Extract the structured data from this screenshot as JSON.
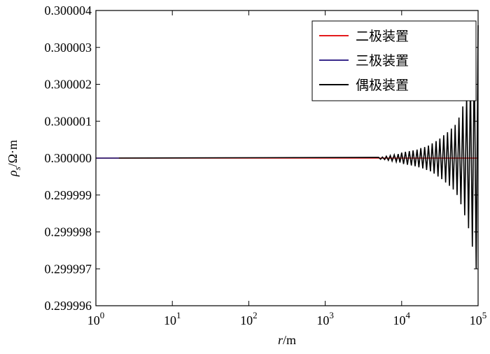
{
  "chart_data": {
    "type": "line",
    "xlabel": {
      "italic": "r",
      "rest": "/m"
    },
    "ylabel": {
      "main": "ρ",
      "sub": "s",
      "rest": "/Ω·m"
    },
    "xscale": "log",
    "xlim": [
      1,
      100000
    ],
    "xticks": [
      {
        "value": 1,
        "label": "10",
        "exponent": "0"
      },
      {
        "value": 10,
        "label": "10",
        "exponent": "1"
      },
      {
        "value": 100,
        "label": "10",
        "exponent": "2"
      },
      {
        "value": 1000,
        "label": "10",
        "exponent": "3"
      },
      {
        "value": 10000,
        "label": "10",
        "exponent": "4"
      },
      {
        "value": 100000,
        "label": "10",
        "exponent": "5"
      }
    ],
    "ylim": [
      0.299996,
      0.300004
    ],
    "yticks": [
      0.299996,
      0.299997,
      0.299998,
      0.299999,
      {
        "value": 0.3,
        "label": "0.300000"
      },
      0.300001,
      0.300002,
      0.300003,
      0.300004
    ],
    "legend": "upper right",
    "grid": false,
    "series": [
      {
        "name": "二极装置",
        "color": "#e41a1c",
        "x": [
          1,
          100000
        ],
        "values": [
          0.3,
          0.3
        ]
      },
      {
        "name": "三极装置",
        "color": "#3a2a8c",
        "x": [
          1,
          2
        ],
        "values": [
          0.3,
          0.3
        ]
      },
      {
        "name": "偶极装置",
        "color": "#000000",
        "x": [
          1,
          5000,
          5300,
          5600,
          6000,
          6300,
          6700,
          7100,
          7500,
          8000,
          8500,
          9000,
          9500,
          10000,
          10600,
          11200,
          11900,
          12600,
          13400,
          14100,
          15000,
          15900,
          16800,
          17800,
          18900,
          20000,
          21200,
          22400,
          23800,
          25100,
          26600,
          28200,
          29900,
          31600,
          33500,
          35500,
          37600,
          39800,
          42200,
          44700,
          47300,
          50100,
          53100,
          56200,
          59600,
          63100,
          66800,
          70800,
          75000,
          79400,
          84100,
          89100,
          94400,
          100000
        ],
        "values": [
          0.3,
          0.30000002,
          0.29999997,
          0.30000003,
          0.29999996,
          0.30000005,
          0.29999994,
          0.30000007,
          0.29999992,
          0.30000009,
          0.2999999,
          0.30000011,
          0.29999988,
          0.30000015,
          0.29999984,
          0.30000017,
          0.29999982,
          0.30000019,
          0.2999998,
          0.30000021,
          0.29999978,
          0.30000023,
          0.29999975,
          0.30000027,
          0.29999972,
          0.3000003,
          0.29999968,
          0.30000034,
          0.29999964,
          0.3000004,
          0.29999958,
          0.30000046,
          0.2999995,
          0.30000053,
          0.29999943,
          0.30000062,
          0.29999934,
          0.3000007,
          0.29999925,
          0.3000008,
          0.29999915,
          0.3000009,
          0.299999,
          0.3000011,
          0.29999875,
          0.3000014,
          0.29999845,
          0.3000017,
          0.2999981,
          0.3000021,
          0.2999976,
          0.3000028,
          0.299997,
          0.3000036
        ]
      }
    ]
  }
}
